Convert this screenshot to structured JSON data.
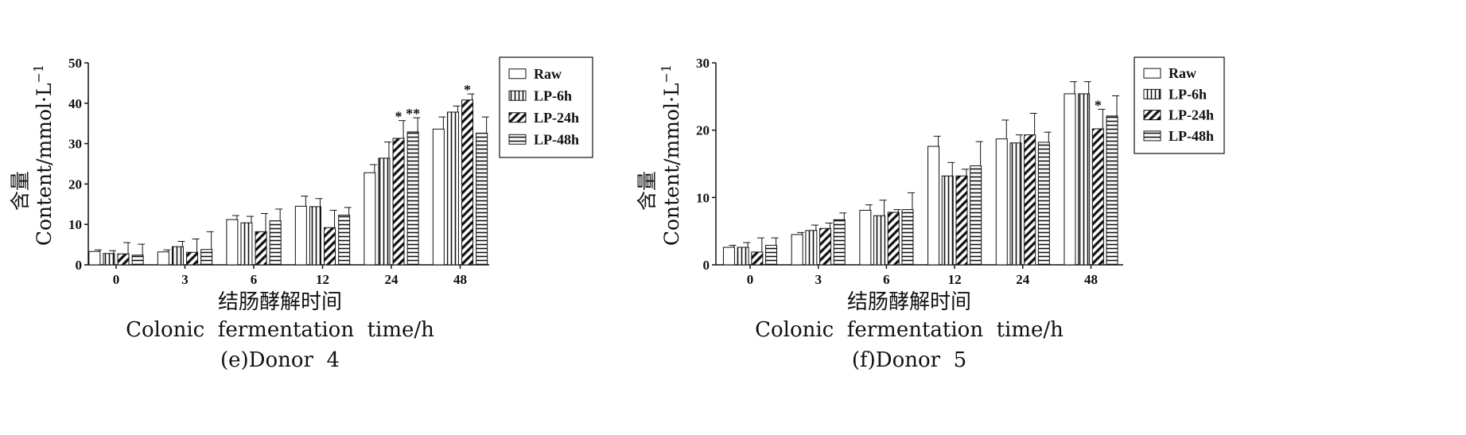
{
  "chart_data": [
    {
      "type": "bar",
      "panel_label": "(e)Donor  4",
      "xlabel_cn": "结肠酵解时间",
      "xlabel": "Colonic  fermentation  time/h",
      "ylabel_cn": "含量",
      "ylabel": "Content/mmol·L",
      "ylabel_sup": "−1",
      "ylim": [
        0,
        50
      ],
      "yticks": [
        "0",
        "10",
        "20",
        "30",
        "40",
        "50"
      ],
      "categories": [
        "0",
        "3",
        "6",
        "12",
        "24",
        "48"
      ],
      "legend_position": "top-right",
      "series": [
        {
          "name": "Raw",
          "pattern": "plain",
          "values": [
            3.3,
            3.2,
            11.2,
            14.5,
            22.8,
            33.6
          ],
          "errors": [
            0.4,
            0.5,
            1.0,
            2.5,
            2.0,
            3.0
          ]
        },
        {
          "name": "LP-6h",
          "pattern": "vertical",
          "values": [
            2.8,
            4.5,
            10.4,
            14.4,
            26.4,
            37.8
          ],
          "errors": [
            0.7,
            1.3,
            1.6,
            2.0,
            4.0,
            1.5
          ]
        },
        {
          "name": "LP-24h",
          "pattern": "diagonal",
          "values": [
            2.7,
            3.1,
            8.2,
            9.2,
            31.3,
            40.8
          ],
          "errors": [
            2.8,
            3.3,
            4.5,
            4.3,
            4.4,
            1.5
          ]
        },
        {
          "name": "LP-48h",
          "pattern": "horizontal",
          "values": [
            2.4,
            3.8,
            10.9,
            12.3,
            32.9,
            32.6
          ],
          "errors": [
            2.7,
            4.4,
            2.9,
            1.9,
            3.5,
            4.0
          ]
        }
      ],
      "annotations": [
        {
          "category": "24",
          "series": "LP-24h",
          "text": "*"
        },
        {
          "category": "24",
          "series": "LP-48h",
          "text": "**"
        },
        {
          "category": "48",
          "series": "LP-24h",
          "text": "*"
        }
      ]
    },
    {
      "type": "bar",
      "panel_label": "(f)Donor  5",
      "xlabel_cn": "结肠酵解时间",
      "xlabel": "Colonic  fermentation  time/h",
      "ylabel_cn": "含量",
      "ylabel": "Content/mmol·L",
      "ylabel_sup": "−1",
      "ylim": [
        0,
        30
      ],
      "yticks": [
        "0",
        "10",
        "20",
        "30"
      ],
      "categories": [
        "0",
        "3",
        "6",
        "12",
        "24",
        "48"
      ],
      "legend_position": "top-right",
      "series": [
        {
          "name": "Raw",
          "pattern": "plain",
          "values": [
            2.6,
            4.5,
            8.1,
            17.6,
            18.7,
            25.4
          ],
          "errors": [
            0.3,
            0.3,
            0.8,
            1.5,
            2.8,
            1.8
          ]
        },
        {
          "name": "LP-6h",
          "pattern": "vertical",
          "values": [
            2.6,
            5.1,
            7.3,
            13.2,
            18.1,
            25.4
          ],
          "errors": [
            0.7,
            0.8,
            2.3,
            2.0,
            1.2,
            1.8
          ]
        },
        {
          "name": "LP-24h",
          "pattern": "diagonal",
          "values": [
            1.9,
            5.4,
            7.8,
            13.2,
            19.3,
            20.2
          ],
          "errors": [
            2.1,
            0.8,
            0.4,
            1.0,
            3.2,
            2.9
          ]
        },
        {
          "name": "LP-48h",
          "pattern": "horizontal",
          "values": [
            2.9,
            6.7,
            8.2,
            14.7,
            18.2,
            22.1
          ],
          "errors": [
            1.1,
            1.0,
            2.5,
            3.6,
            1.5,
            3.0
          ]
        }
      ],
      "annotations": [
        {
          "category": "48",
          "series": "LP-24h",
          "text": "*"
        }
      ]
    }
  ]
}
